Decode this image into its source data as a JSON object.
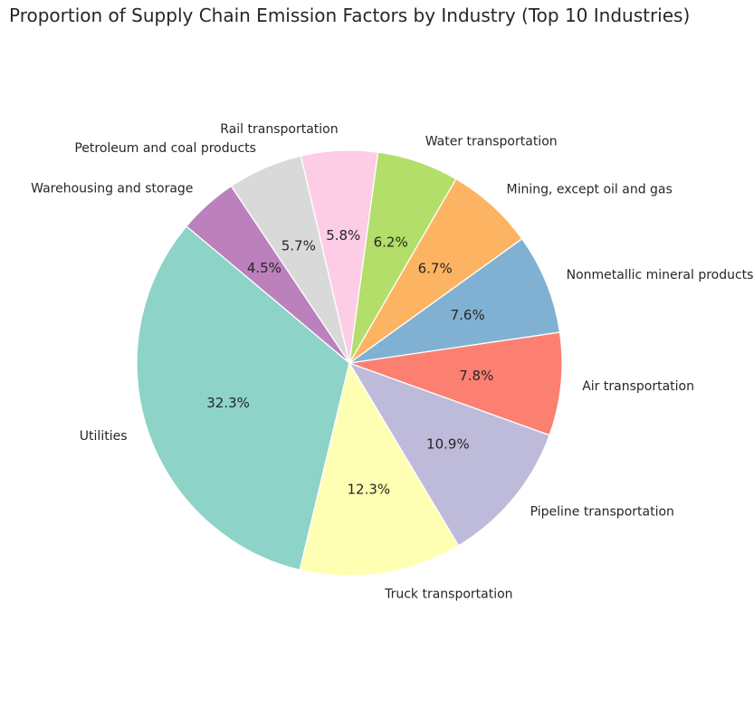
{
  "chart_data": {
    "type": "pie",
    "title": "Proportion of Supply Chain Emission Factors by Industry (Top 10 Industries)",
    "categories": [
      "Utilities",
      "Truck transportation",
      "Pipeline transportation",
      "Air transportation",
      "Nonmetallic mineral products",
      "Mining, except oil and gas",
      "Water transportation",
      "Rail transportation",
      "Petroleum and coal products",
      "Warehousing and storage"
    ],
    "values": [
      32.3,
      12.3,
      10.9,
      7.8,
      7.6,
      6.7,
      6.2,
      5.8,
      5.7,
      4.5
    ],
    "value_labels": [
      "32.3%",
      "12.3%",
      "10.9%",
      "7.8%",
      "7.6%",
      "6.7%",
      "6.2%",
      "5.8%",
      "5.7%",
      "4.5%"
    ],
    "colors": [
      "#8dd3c7",
      "#ffffb3",
      "#bebada",
      "#fb8072",
      "#80b1d3",
      "#fdb462",
      "#b3de69",
      "#fccde5",
      "#d9d9d9",
      "#bc80bd"
    ],
    "start_angle_deg": 140,
    "direction": "counterclockwise",
    "legend": "none"
  }
}
